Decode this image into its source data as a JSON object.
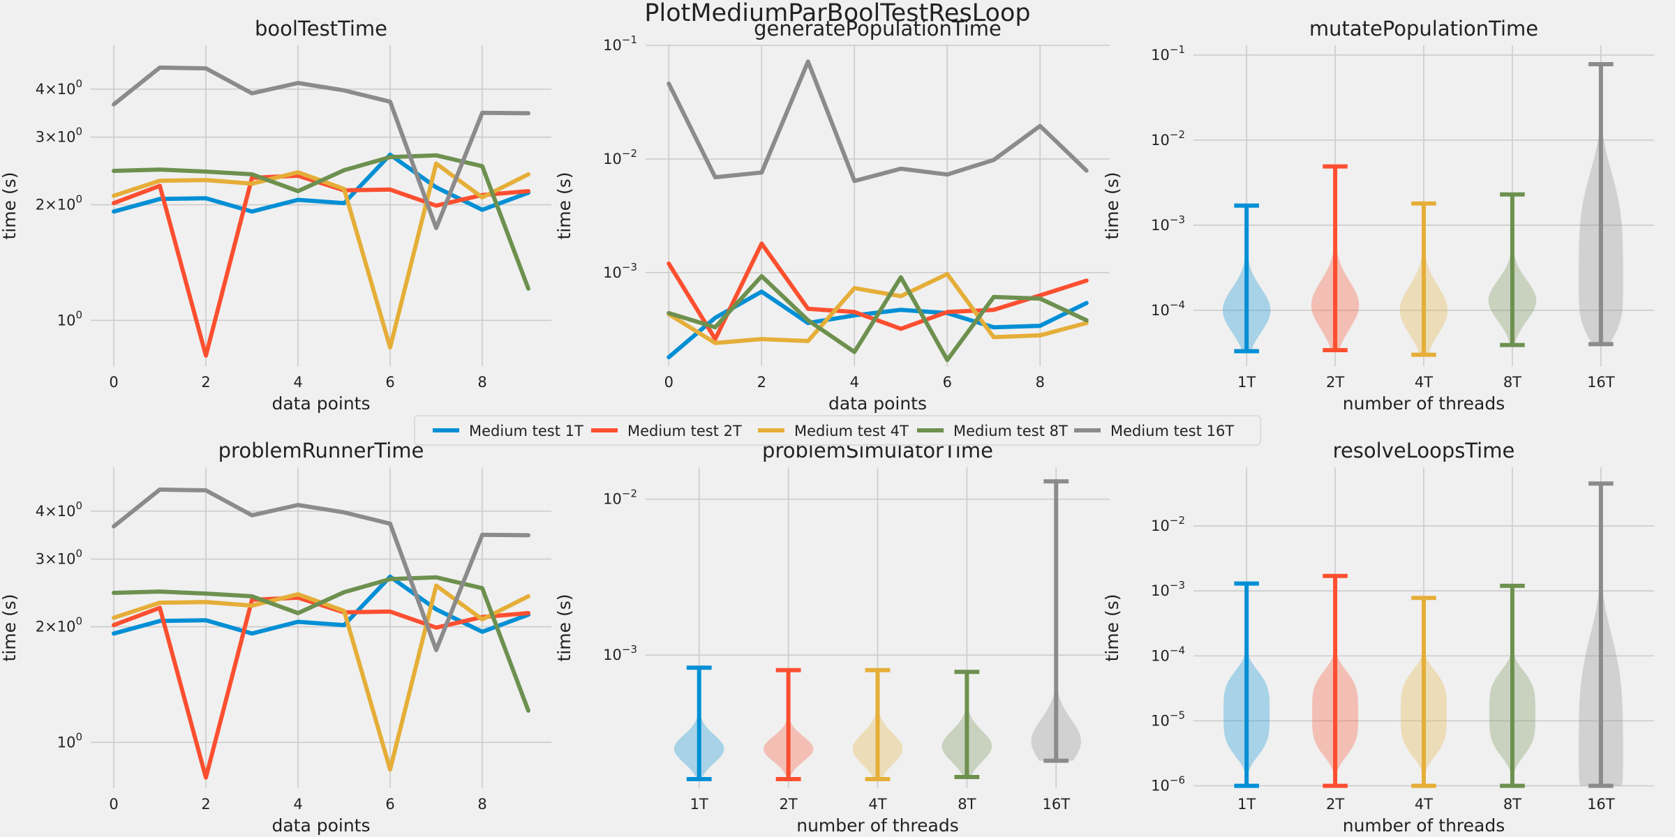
{
  "suptitle": "PlotMediumParBoolTestResLoop",
  "colors": {
    "background": "#f0f0f0",
    "grid": "#cbcbcb",
    "1T": "#008fd5",
    "2T": "#fc4f30",
    "4T": "#e5ae38",
    "8T": "#6d904f",
    "16T": "#8b8b8b"
  },
  "legend": {
    "placement": "center, between rows",
    "entries": [
      "Medium test 1T",
      "Medium test 2T",
      "Medium test 4T",
      "Medium test 8T",
      "Medium test 16T"
    ]
  },
  "chart_data": [
    {
      "id": "boolTestTime",
      "type": "line",
      "title": "boolTestTime",
      "xlabel": "data points",
      "ylabel": "time (s)",
      "yscale": "log",
      "xlim": [
        -0.5,
        9.5
      ],
      "ylim": [
        0.76,
        5.2
      ],
      "xticks": [
        0,
        2,
        4,
        6,
        8
      ],
      "yticks": [
        {
          "value": 1,
          "label": "10^0",
          "base": "10",
          "exp": "0"
        },
        {
          "value": 2,
          "label": "2×10^0",
          "base": "2×10",
          "exp": "0"
        },
        {
          "value": 3,
          "label": "3×10^0",
          "base": "3×10",
          "exp": "0"
        },
        {
          "value": 4,
          "label": "4×10^0",
          "base": "4×10",
          "exp": "0"
        }
      ],
      "grid": true,
      "x": [
        0,
        1,
        2,
        3,
        4,
        5,
        6,
        7,
        8,
        9
      ],
      "series": [
        {
          "name": "Medium test 1T",
          "values": [
            1.92,
            2.07,
            2.08,
            1.92,
            2.06,
            2.02,
            2.7,
            2.22,
            1.94,
            2.15
          ]
        },
        {
          "name": "Medium test 2T",
          "values": [
            2.02,
            2.24,
            0.81,
            2.35,
            2.38,
            2.18,
            2.19,
            1.99,
            2.12,
            2.17
          ]
        },
        {
          "name": "Medium test 4T",
          "values": [
            2.11,
            2.31,
            2.32,
            2.27,
            2.43,
            2.2,
            0.85,
            2.56,
            2.09,
            2.4
          ]
        },
        {
          "name": "Medium test 8T",
          "values": [
            2.45,
            2.47,
            2.44,
            2.4,
            2.17,
            2.46,
            2.66,
            2.69,
            2.52,
            1.21
          ]
        },
        {
          "name": "Medium test 16T",
          "values": [
            3.65,
            4.55,
            4.53,
            3.9,
            4.15,
            3.97,
            3.71,
            1.74,
            3.47,
            3.46
          ]
        }
      ]
    },
    {
      "id": "generatePopulationTime",
      "type": "line",
      "title": "generatePopulationTime",
      "xlabel": "data points",
      "ylabel": "time (s)",
      "yscale": "log",
      "xlim": [
        -0.5,
        9.5
      ],
      "ylim": [
        0.00015,
        0.1
      ],
      "xticks": [
        0,
        2,
        4,
        6,
        8
      ],
      "yticks": [
        {
          "value": 0.001,
          "label": "10^-3",
          "base": "10",
          "exp": "−3"
        },
        {
          "value": 0.01,
          "label": "10^-2",
          "base": "10",
          "exp": "−2"
        },
        {
          "value": 0.1,
          "label": "10^-1",
          "base": "10",
          "exp": "−1"
        }
      ],
      "grid": true,
      "x": [
        0,
        1,
        2,
        3,
        4,
        5,
        6,
        7,
        8,
        9
      ],
      "series": [
        {
          "name": "Medium test 1T",
          "values": [
            0.00018,
            0.0004,
            0.00068,
            0.00036,
            0.00042,
            0.00047,
            0.00044,
            0.00033,
            0.00034,
            0.00054
          ]
        },
        {
          "name": "Medium test 2T",
          "values": [
            0.0012,
            0.00026,
            0.0018,
            0.00048,
            0.00045,
            0.00032,
            0.00045,
            0.00047,
            0.00063,
            0.00085
          ]
        },
        {
          "name": "Medium test 4T",
          "values": [
            0.00043,
            0.00024,
            0.00026,
            0.00025,
            0.00073,
            0.00062,
            0.00097,
            0.00027,
            0.00028,
            0.00036
          ]
        },
        {
          "name": "Medium test 8T",
          "values": [
            0.00044,
            0.00033,
            0.00093,
            0.00038,
            0.0002,
            0.00091,
            0.00017,
            0.00061,
            0.00059,
            0.00038
          ]
        },
        {
          "name": "Medium test 16T",
          "values": [
            0.046,
            0.0069,
            0.0076,
            0.072,
            0.0064,
            0.0082,
            0.0073,
            0.0098,
            0.0195,
            0.0079
          ]
        }
      ]
    },
    {
      "id": "mutatePopulationTime",
      "type": "violin",
      "title": "mutatePopulationTime",
      "xlabel": "number of threads",
      "ylabel": "time (s)",
      "yscale": "log",
      "ylim": [
        2.2e-05,
        0.13
      ],
      "categories": [
        "1T",
        "2T",
        "4T",
        "8T",
        "16T"
      ],
      "yticks": [
        {
          "value": 0.0001,
          "label": "10^-4",
          "base": "10",
          "exp": "−4"
        },
        {
          "value": 0.001,
          "label": "10^-3",
          "base": "10",
          "exp": "−3"
        },
        {
          "value": 0.01,
          "label": "10^-2",
          "base": "10",
          "exp": "−2"
        },
        {
          "value": 0.1,
          "label": "10^-1",
          "base": "10",
          "exp": "−1"
        }
      ],
      "grid": true,
      "violins": [
        {
          "category": "1T",
          "min": 3.3e-05,
          "max": 0.0017,
          "mode": 0.0001,
          "spread": 0.26,
          "halfwidth": 0.27,
          "skew": 1.0
        },
        {
          "category": "2T",
          "min": 3.4e-05,
          "max": 0.0049,
          "mode": 0.000115,
          "spread": 0.28,
          "halfwidth": 0.27,
          "skew": 1.0
        },
        {
          "category": "4T",
          "min": 3e-05,
          "max": 0.0018,
          "mode": 0.0001,
          "spread": 0.28,
          "halfwidth": 0.27,
          "skew": 1.0
        },
        {
          "category": "8T",
          "min": 3.9e-05,
          "max": 0.0023,
          "mode": 0.00013,
          "spread": 0.24,
          "halfwidth": 0.27,
          "skew": 1.0
        },
        {
          "category": "16T",
          "min": 4e-05,
          "max": 0.078,
          "mode": 0.0002,
          "spread": 0.6,
          "halfwidth": 0.25,
          "skew": 2.0,
          "flat": true
        }
      ]
    },
    {
      "id": "problemRunnerTime",
      "type": "line",
      "title": "problemRunnerTime",
      "xlabel": "data points",
      "ylabel": "time (s)",
      "yscale": "log",
      "xlim": [
        -0.5,
        9.5
      ],
      "ylim": [
        0.76,
        5.2
      ],
      "xticks": [
        0,
        2,
        4,
        6,
        8
      ],
      "yticks": [
        {
          "value": 1,
          "label": "10^0",
          "base": "10",
          "exp": "0"
        },
        {
          "value": 2,
          "label": "2×10^0",
          "base": "2×10",
          "exp": "0"
        },
        {
          "value": 3,
          "label": "3×10^0",
          "base": "3×10",
          "exp": "0"
        },
        {
          "value": 4,
          "label": "4×10^0",
          "base": "4×10",
          "exp": "0"
        }
      ],
      "grid": true,
      "x": [
        0,
        1,
        2,
        3,
        4,
        5,
        6,
        7,
        8,
        9
      ],
      "series": [
        {
          "name": "Medium test 1T",
          "values": [
            1.92,
            2.07,
            2.08,
            1.92,
            2.06,
            2.02,
            2.7,
            2.22,
            1.94,
            2.15
          ]
        },
        {
          "name": "Medium test 2T",
          "values": [
            2.02,
            2.24,
            0.81,
            2.35,
            2.38,
            2.18,
            2.19,
            1.99,
            2.12,
            2.17
          ]
        },
        {
          "name": "Medium test 4T",
          "values": [
            2.11,
            2.31,
            2.32,
            2.27,
            2.43,
            2.2,
            0.85,
            2.56,
            2.09,
            2.4
          ]
        },
        {
          "name": "Medium test 8T",
          "values": [
            2.45,
            2.47,
            2.44,
            2.4,
            2.17,
            2.46,
            2.66,
            2.69,
            2.52,
            1.21
          ]
        },
        {
          "name": "Medium test 16T",
          "values": [
            3.65,
            4.55,
            4.53,
            3.9,
            4.15,
            3.97,
            3.71,
            1.74,
            3.47,
            3.46
          ]
        }
      ]
    },
    {
      "id": "problemSimulatorTime",
      "type": "violin",
      "title": "problemSimulatorTime",
      "xlabel": "number of threads",
      "ylabel": "time (s)",
      "yscale": "log",
      "ylim": [
        0.00014,
        0.016
      ],
      "categories": [
        "1T",
        "2T",
        "4T",
        "8T",
        "16T"
      ],
      "yticks": [
        {
          "value": 0.001,
          "label": "10^-3",
          "base": "10",
          "exp": "−3"
        },
        {
          "value": 0.01,
          "label": "10^-2",
          "base": "10",
          "exp": "−2"
        }
      ],
      "grid": true,
      "violins": [
        {
          "category": "1T",
          "min": 0.00016,
          "max": 0.00083,
          "mode": 0.00025,
          "spread": 0.09,
          "halfwidth": 0.28,
          "skew": 1.0
        },
        {
          "category": "2T",
          "min": 0.00016,
          "max": 0.0008,
          "mode": 0.00025,
          "spread": 0.08,
          "halfwidth": 0.28,
          "skew": 1.0
        },
        {
          "category": "4T",
          "min": 0.00016,
          "max": 0.0008,
          "mode": 0.00025,
          "spread": 0.1,
          "halfwidth": 0.28,
          "skew": 1.0
        },
        {
          "category": "8T",
          "min": 0.000165,
          "max": 0.00078,
          "mode": 0.00026,
          "spread": 0.1,
          "halfwidth": 0.28,
          "skew": 1.0
        },
        {
          "category": "16T",
          "min": 0.00021,
          "max": 0.013,
          "mode": 0.00028,
          "spread": 0.14,
          "halfwidth": 0.28,
          "skew": 1.0
        }
      ]
    },
    {
      "id": "resolveLoopsTime",
      "type": "violin",
      "title": "resolveLoopsTime",
      "xlabel": "number of threads",
      "ylabel": "time (s)",
      "yscale": "log",
      "ylim": [
        9.2e-07,
        0.08
      ],
      "categories": [
        "1T",
        "2T",
        "4T",
        "8T",
        "16T"
      ],
      "yticks": [
        {
          "value": 1e-06,
          "label": "10^-6",
          "base": "10",
          "exp": "−6"
        },
        {
          "value": 1e-05,
          "label": "10^-5",
          "base": "10",
          "exp": "−5"
        },
        {
          "value": 0.0001,
          "label": "10^-4",
          "base": "10",
          "exp": "−4"
        },
        {
          "value": 0.001,
          "label": "10^-3",
          "base": "10",
          "exp": "−3"
        },
        {
          "value": 0.01,
          "label": "10^-2",
          "base": "10",
          "exp": "−2"
        }
      ],
      "grid": true,
      "violins": [
        {
          "category": "1T",
          "min": 1e-06,
          "max": 0.0013,
          "mode": 1.3e-05,
          "spread": 0.6,
          "halfwidth": 0.26,
          "skew": 1.0,
          "flat": true
        },
        {
          "category": "2T",
          "min": 1e-06,
          "max": 0.0017,
          "mode": 1.3e-05,
          "spread": 0.6,
          "halfwidth": 0.26,
          "skew": 1.0,
          "flat": true
        },
        {
          "category": "4T",
          "min": 1e-06,
          "max": 0.00078,
          "mode": 1.3e-05,
          "spread": 0.6,
          "halfwidth": 0.26,
          "skew": 1.0,
          "flat": true
        },
        {
          "category": "8T",
          "min": 1e-06,
          "max": 0.0012,
          "mode": 1.3e-05,
          "spread": 0.6,
          "halfwidth": 0.26,
          "skew": 1.0,
          "flat": true
        },
        {
          "category": "16T",
          "min": 1e-06,
          "max": 0.045,
          "mode": 2.5e-06,
          "spread": 0.7,
          "halfwidth": 0.25,
          "skew": 2.5,
          "flat": true
        }
      ]
    }
  ]
}
